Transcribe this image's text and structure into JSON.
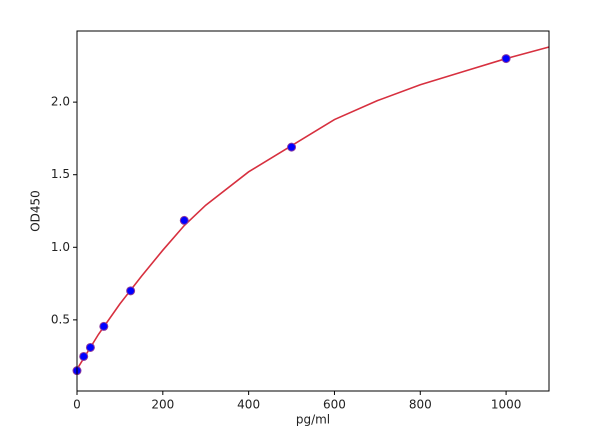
{
  "chart_data": {
    "type": "scatter",
    "xlabel": "pg/ml",
    "ylabel": "OD450",
    "xlim": [
      0,
      1100
    ],
    "ylim": [
      0.01,
      2.49
    ],
    "xticks": [
      0,
      200,
      400,
      600,
      800,
      1000
    ],
    "yticks": [
      0.5,
      {
        "value": 1,
        "label": "1.0"
      },
      1.5,
      {
        "value": 2,
        "label": "2.0"
      }
    ],
    "series": [
      {
        "kind": "points",
        "color": "#0000ff",
        "edge": "#8b3a9e",
        "x": [
          0,
          15.6,
          31.25,
          62.5,
          125,
          250,
          500,
          1000
        ],
        "values": [
          0.15,
          0.248,
          0.31,
          0.455,
          0.7,
          1.185,
          1.69,
          2.3
        ]
      },
      {
        "kind": "curve",
        "color": "#d7303f",
        "x": [
          0,
          50,
          100,
          150,
          200,
          250,
          300,
          400,
          500,
          600,
          700,
          800,
          900,
          1000,
          1100
        ],
        "values": [
          0.16,
          0.4,
          0.61,
          0.8,
          0.98,
          1.15,
          1.29,
          1.52,
          1.7,
          1.88,
          2.01,
          2.12,
          2.21,
          2.3,
          2.38
        ]
      }
    ]
  }
}
